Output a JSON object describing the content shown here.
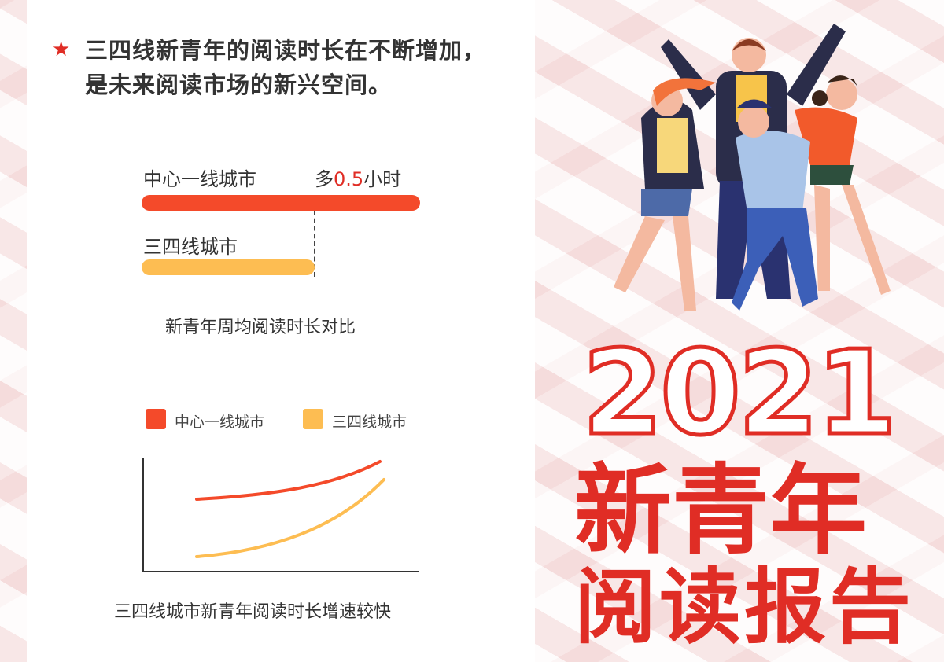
{
  "headline": {
    "line1": "三四线新青年的阅读时长在不断增加，",
    "line2": "是未来阅读市场的新兴空间。",
    "bullet_icon": "star-icon"
  },
  "bar_compare": {
    "bars": [
      {
        "label": "中心一线城市",
        "color": "#f44a2a"
      },
      {
        "label": "三四线城市",
        "color": "#fdbd52"
      }
    ],
    "diff_prefix": "多",
    "diff_value": "0.5",
    "diff_suffix": "小时",
    "caption": "新青年周均阅读时长对比"
  },
  "chart_data": {
    "type": "line",
    "series": [
      {
        "name": "中心一线城市",
        "color": "#f44a2a",
        "trend": "increasing"
      },
      {
        "name": "三四线城市",
        "color": "#fdbd52",
        "trend": "increasing faster"
      }
    ],
    "legend": "top",
    "caption": "三四线城市新青年阅读时长增速较快"
  },
  "title": {
    "year": "2021",
    "line1": "新青年",
    "line2": "阅读报告",
    "color": "#e02d25"
  }
}
